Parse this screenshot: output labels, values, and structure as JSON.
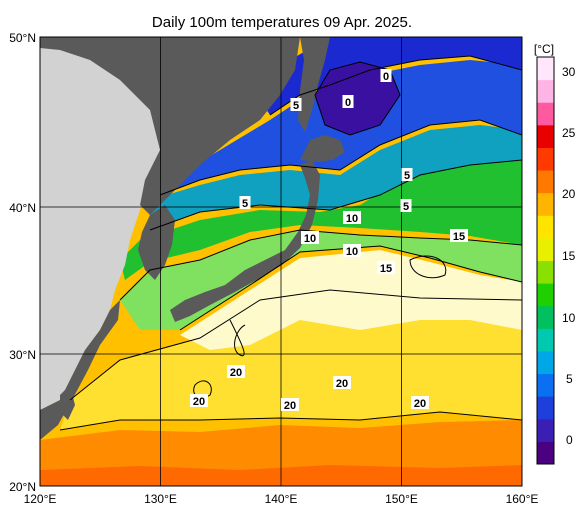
{
  "title": "Daily 100m temperatures 09 Apr. 2025.",
  "colorbar": {
    "unit_label": "[°C]",
    "ticks": [
      "30",
      "25",
      "20",
      "15",
      "10",
      "5",
      "0"
    ],
    "colors": [
      "#4b0082",
      "#3b1fb4",
      "#1f3fdc",
      "#0a6ff0",
      "#00a7e6",
      "#00c9b0",
      "#00c060",
      "#1ed000",
      "#8ae000",
      "#e8f000",
      "#ffe400",
      "#ffb400",
      "#ff7800",
      "#ff3a00",
      "#e80000",
      "#ff5aa0",
      "#ffb4e6",
      "#ffe6fa"
    ]
  },
  "map": {
    "lon_labels": [
      "120°E",
      "130°E",
      "140°E",
      "150°E",
      "160°E"
    ],
    "lat_labels": [
      "50°N",
      "40°N",
      "30°N",
      "20°N"
    ]
  },
  "contour_labels": [
    "0",
    "0",
    "5",
    "5",
    "5",
    "5",
    "10",
    "10",
    "10",
    "15",
    "15",
    "20",
    "20",
    "20",
    "20",
    "20"
  ],
  "colors": {
    "land_dark": "#5a5a5a",
    "land_light": "#d2d2d2",
    "deep_blue": "#1a2ad0",
    "purple": "#3a10a0",
    "blue": "#2050e0",
    "teal": "#10a0c0",
    "green": "#20c030",
    "light_green": "#80e060",
    "pale": "#fffacc",
    "yellow": "#ffe030",
    "gold": "#ffc000",
    "orange": "#ff8c00"
  }
}
